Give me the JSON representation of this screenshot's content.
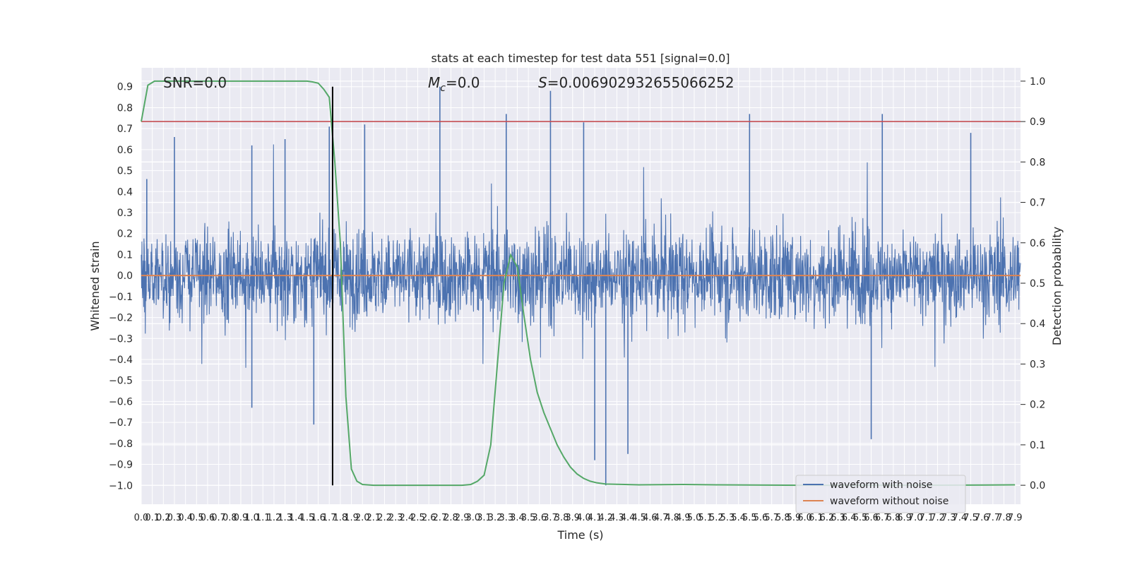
{
  "chart_data": {
    "type": "line",
    "title": "stats at each timestep for test data 551 [signal=0.0]",
    "xlabel": "Time (s)",
    "ylabel": "Whitened strain",
    "y2label": "Detection probability",
    "xlim": [
      0.0,
      7.95
    ],
    "ylim": [
      -1.09,
      0.99
    ],
    "y2lim": [
      -0.047,
      1.033
    ],
    "x_ticks": [
      0.0,
      0.1,
      0.2,
      0.3,
      0.4,
      0.5,
      0.6,
      0.7,
      0.8,
      0.9,
      1.0,
      1.1,
      1.2,
      1.3,
      1.4,
      1.5,
      1.6,
      1.7,
      1.8,
      1.9,
      2.0,
      2.1,
      2.2,
      2.3,
      2.4,
      2.5,
      2.6,
      2.7,
      2.8,
      2.9,
      3.0,
      3.1,
      3.2,
      3.3,
      3.4,
      3.5,
      3.6,
      3.7,
      3.8,
      3.9,
      4.0,
      4.1,
      4.2,
      4.3,
      4.4,
      4.5,
      4.6,
      4.7,
      4.8,
      4.9,
      5.0,
      5.1,
      5.2,
      5.3,
      5.4,
      5.5,
      5.6,
      5.7,
      5.8,
      5.9,
      6.0,
      6.1,
      6.2,
      6.3,
      6.4,
      6.5,
      6.6,
      6.7,
      6.8,
      6.9,
      7.0,
      7.1,
      7.2,
      7.3,
      7.4,
      7.5,
      7.6,
      7.7,
      7.8,
      7.9
    ],
    "y_ticks": [
      -1.0,
      -0.9,
      -0.8,
      -0.7,
      -0.6,
      -0.5,
      -0.4,
      -0.3,
      -0.2,
      -0.1,
      0.0,
      0.1,
      0.2,
      0.3,
      0.4,
      0.5,
      0.6,
      0.7,
      0.8,
      0.9
    ],
    "y2_ticks": [
      0.0,
      0.1,
      0.2,
      0.3,
      0.4,
      0.5,
      0.6,
      0.7,
      0.8,
      0.9,
      1.0
    ],
    "grid": true,
    "legend_position": "bottom-right",
    "annotations": {
      "snr": "SNR=0.0",
      "mc_symbol": "M",
      "mc_sub": "c",
      "mc_value": "=0.0",
      "s_symbol": "S",
      "s_value": "=0.006902932655066252"
    },
    "series": [
      {
        "name": "waveform with noise",
        "color": "#4c72b0",
        "axis": "left",
        "kind": "noise",
        "amplitude_typical": 0.35,
        "peaks": [
          {
            "x": 0.05,
            "y": 0.46
          },
          {
            "x": 0.3,
            "y": 0.66
          },
          {
            "x": 1.0,
            "y": 0.62
          },
          {
            "x": 1.3,
            "y": 0.65
          },
          {
            "x": 1.7,
            "y": 0.71
          },
          {
            "x": 2.02,
            "y": 0.72
          },
          {
            "x": 2.7,
            "y": 0.9
          },
          {
            "x": 3.3,
            "y": 0.77
          },
          {
            "x": 3.7,
            "y": 0.88
          },
          {
            "x": 4.0,
            "y": 0.73
          },
          {
            "x": 5.5,
            "y": 0.77
          },
          {
            "x": 6.7,
            "y": 0.77
          },
          {
            "x": 7.5,
            "y": 0.68
          },
          {
            "x": 1.56,
            "y": -0.71
          },
          {
            "x": 1.73,
            "y": -0.78
          },
          {
            "x": 4.1,
            "y": -0.88
          },
          {
            "x": 4.2,
            "y": -1.0
          },
          {
            "x": 4.4,
            "y": -0.85
          },
          {
            "x": 6.6,
            "y": -0.78
          },
          {
            "x": 1.0,
            "y": -0.63
          }
        ]
      },
      {
        "name": "waveform without noise",
        "color": "#dd8452",
        "axis": "left",
        "x": [
          0.0,
          7.95
        ],
        "y": [
          0.0,
          0.0
        ]
      },
      {
        "color": "#55a868",
        "axis": "right",
        "x": [
          0.0,
          0.06,
          0.12,
          0.5,
          1.0,
          1.5,
          1.55,
          1.6,
          1.65,
          1.7,
          1.75,
          1.8,
          1.85,
          1.9,
          1.95,
          2.0,
          2.1,
          2.3,
          2.6,
          2.9,
          2.98,
          3.04,
          3.1,
          3.16,
          3.22,
          3.28,
          3.34,
          3.4,
          3.46,
          3.52,
          3.58,
          3.64,
          3.7,
          3.76,
          3.82,
          3.88,
          3.94,
          4.0,
          4.06,
          4.12,
          4.2,
          4.5,
          4.9,
          5.2,
          6.0,
          7.0,
          7.9
        ],
        "y": [
          0.9,
          0.99,
          1.0,
          1.0,
          1.0,
          1.0,
          0.998,
          0.995,
          0.98,
          0.96,
          0.8,
          0.6,
          0.22,
          0.04,
          0.01,
          0.002,
          0.0,
          0.0,
          0.0,
          0.0,
          0.002,
          0.01,
          0.025,
          0.1,
          0.3,
          0.5,
          0.57,
          0.54,
          0.42,
          0.31,
          0.23,
          0.18,
          0.14,
          0.1,
          0.07,
          0.045,
          0.028,
          0.017,
          0.01,
          0.006,
          0.003,
          0.001,
          0.002,
          0.001,
          0.0,
          0.0,
          0.001
        ]
      },
      {
        "color": "#c44e52",
        "axis": "right",
        "kind": "hline",
        "y": 0.9
      },
      {
        "color": "#000000",
        "axis": "left",
        "kind": "vline",
        "x": 1.73,
        "y": [
          -1.0,
          0.9
        ]
      }
    ]
  }
}
